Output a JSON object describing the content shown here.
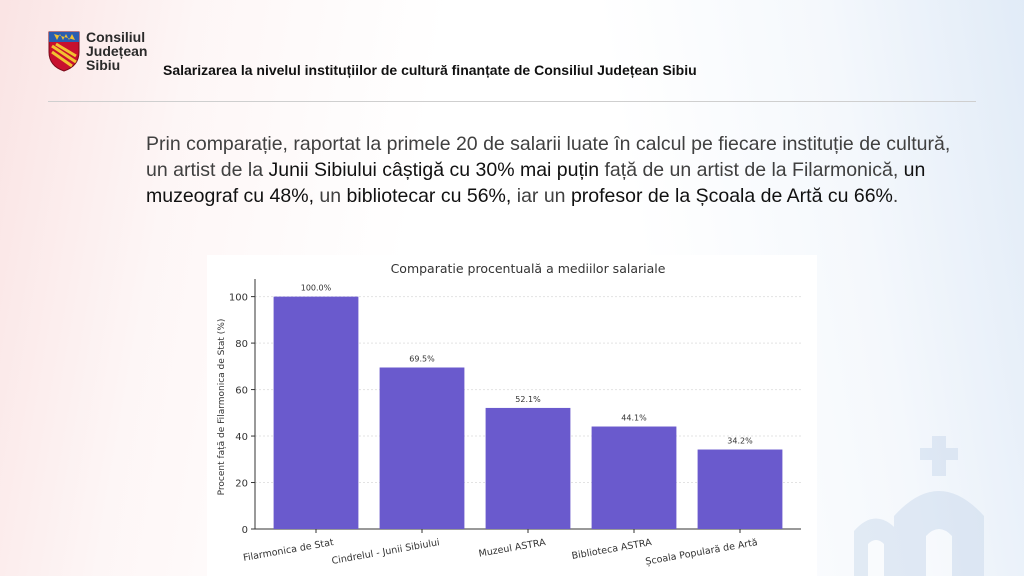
{
  "header": {
    "logo_lines": [
      "Consiliul",
      "Județean",
      "Sibiu"
    ],
    "title": "Salarizarea la nivelul instituțiilor de cultură finanțate de Consiliul Județean Sibiu"
  },
  "paragraph": {
    "p1": "Prin comparație, raportat la primele 20 de salarii luate în calcul pe fiecare instituție de cultură, un artist de la ",
    "b1": "Junii Sibiului câștigă cu 30% mai puțin",
    "p2": " față de un artist de la Filarmonică, ",
    "b2": "un muzeograf cu 48%,",
    "p3": " un ",
    "b3": "bibliotecar cu 56%,",
    "p4": " iar un ",
    "b4": "profesor de la Școala de Artă cu 66%",
    "p5": "."
  },
  "colors": {
    "bar": "#6a5acd",
    "accent_text": "#111111"
  },
  "chart_data": {
    "type": "bar",
    "title": "Comparatie procentuală a mediilor salariale",
    "xlabel": "",
    "ylabel": "Procent față de Filarmonica de Stat (%)",
    "categories": [
      "Filarmonica de Stat",
      "Cindrelul - Junii Sibiului",
      "Muzeul ASTRA",
      "Biblioteca ASTRA",
      "Școala Populară de Artă"
    ],
    "values": [
      100.0,
      69.5,
      52.1,
      44.1,
      34.2
    ],
    "value_labels": [
      "100.0%",
      "69.5%",
      "52.1%",
      "44.1%",
      "34.2%"
    ],
    "yticks": [
      0,
      20,
      40,
      60,
      80,
      100
    ],
    "ylim": [
      0,
      105
    ],
    "grid": true
  }
}
